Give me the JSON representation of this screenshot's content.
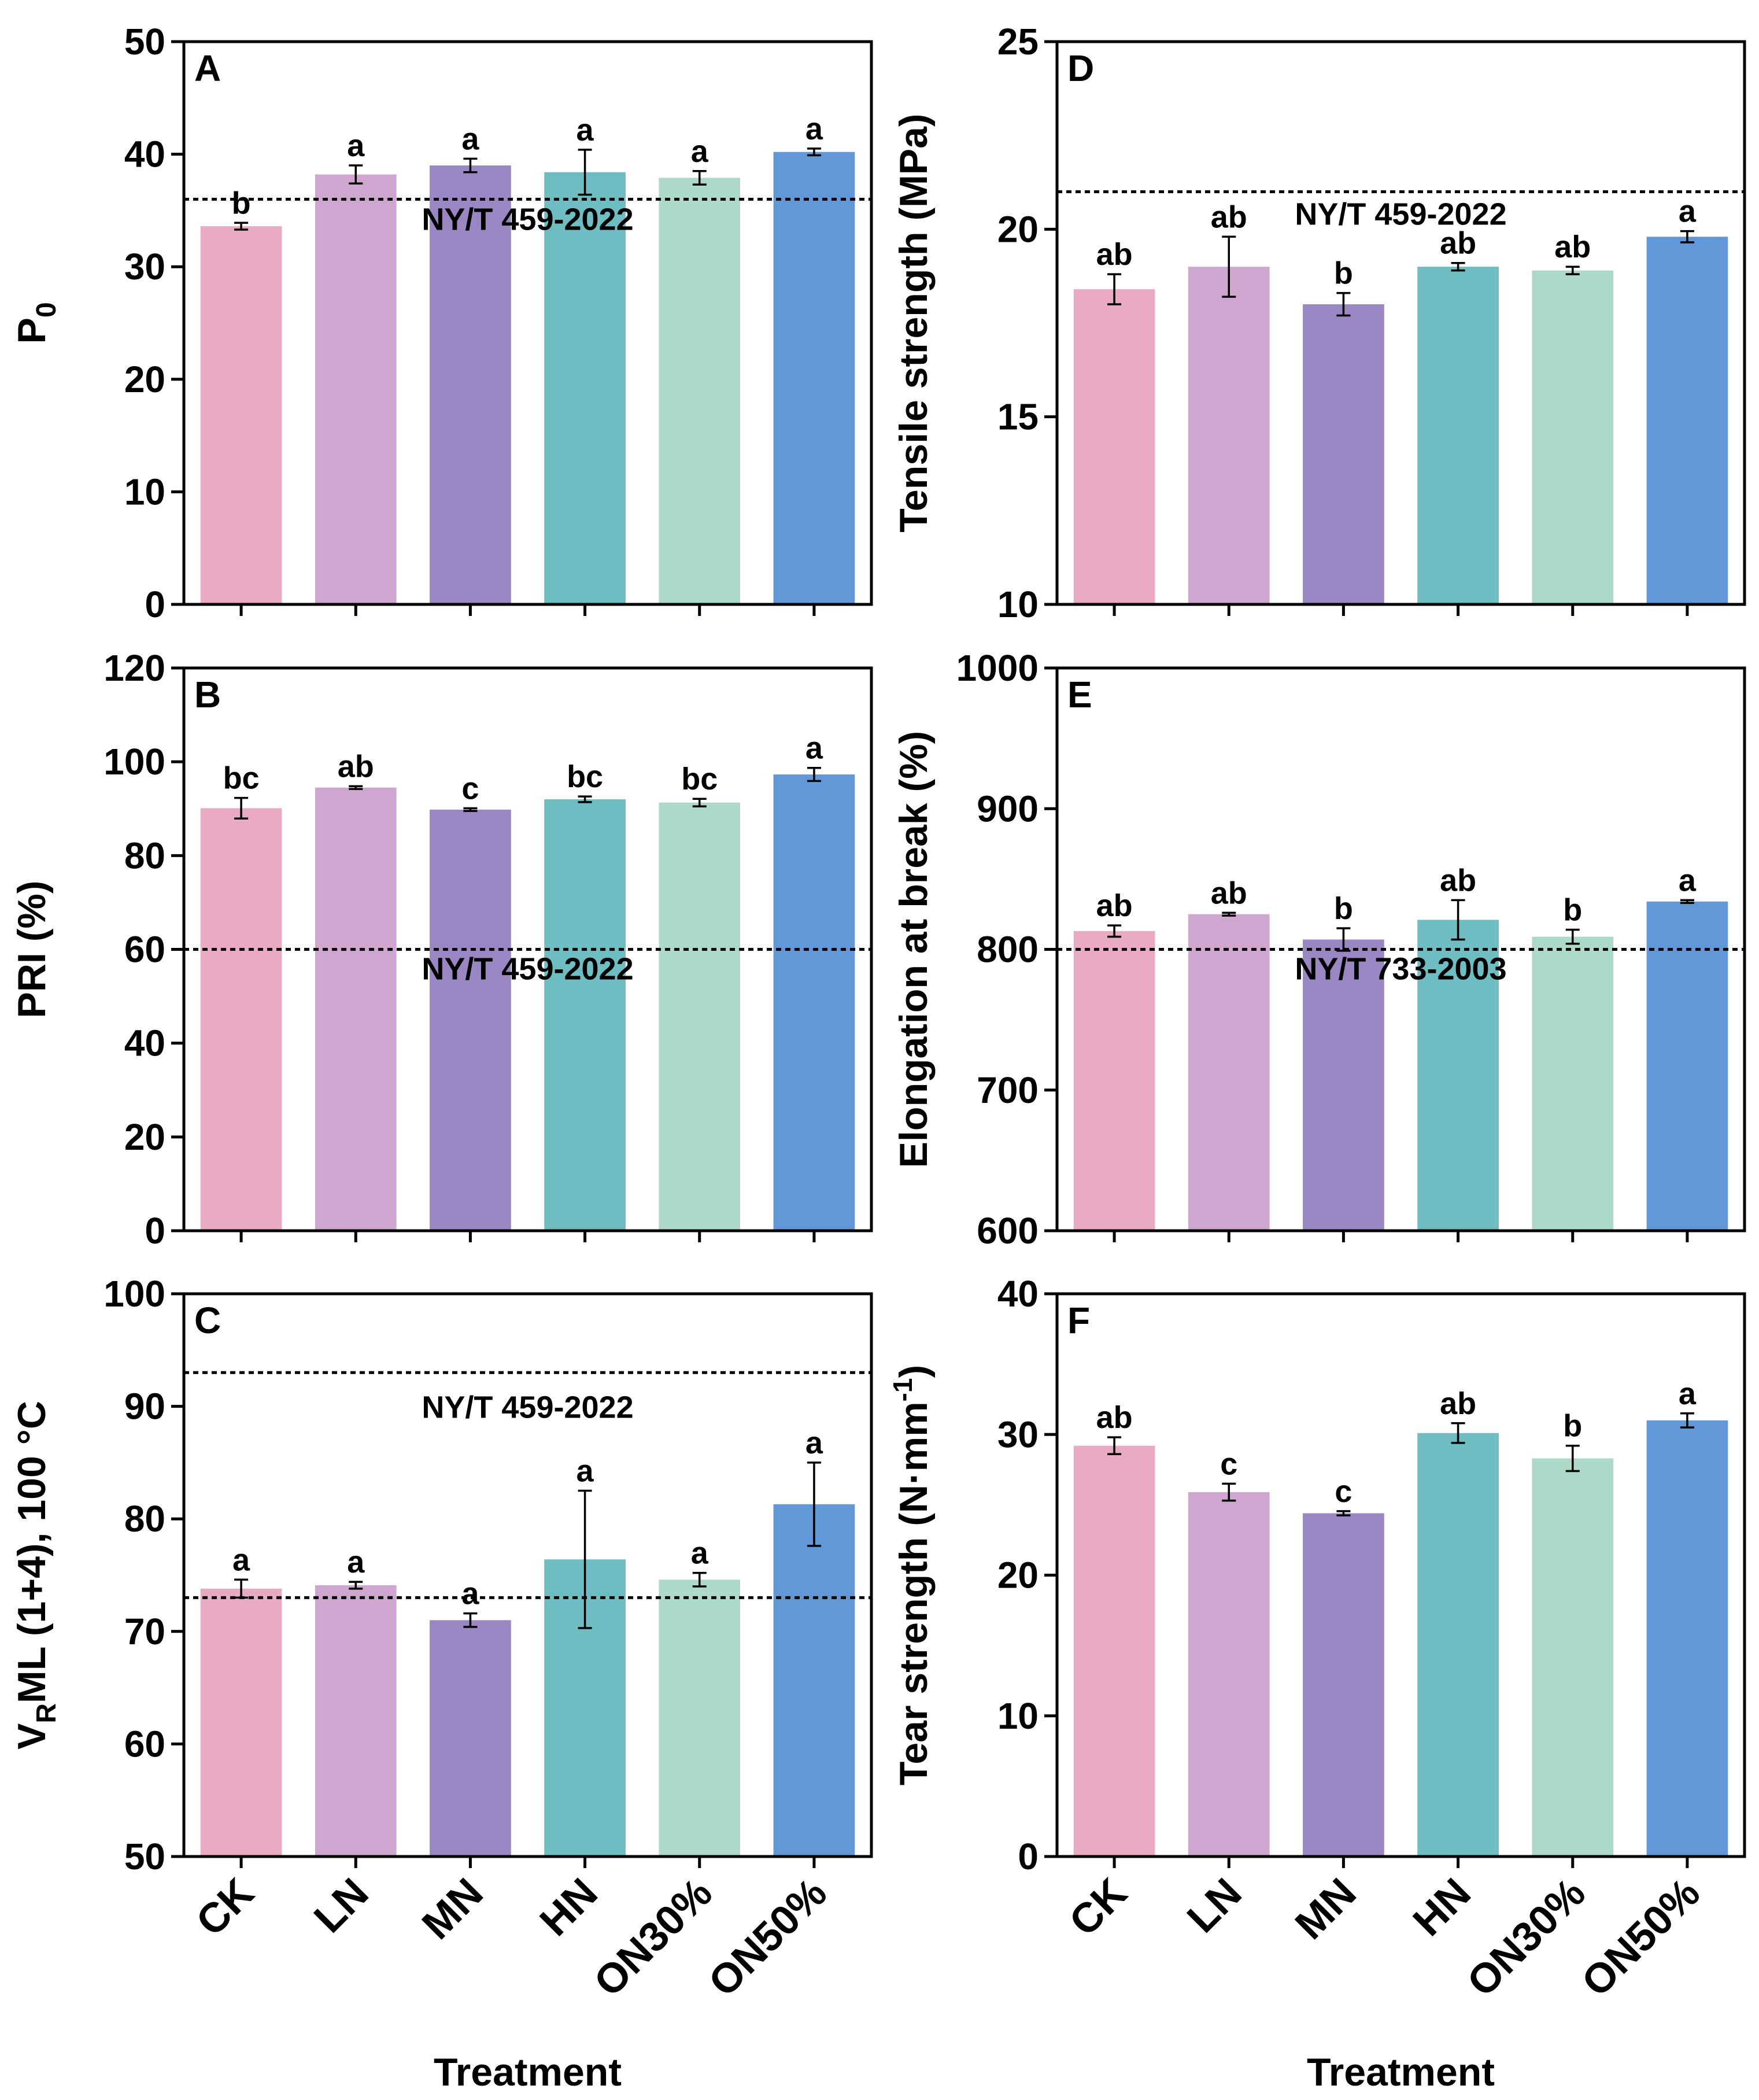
{
  "chart_data": [
    {
      "id": "A",
      "type": "bar",
      "panel_label": "A",
      "categories": [
        "CK",
        "LN",
        "MN",
        "HN",
        "ON30%",
        "ON50%"
      ],
      "values": [
        33.6,
        38.2,
        39.0,
        38.4,
        37.9,
        40.2
      ],
      "errors": [
        0.3,
        0.8,
        0.6,
        2.0,
        0.6,
        0.3
      ],
      "significance": [
        "b",
        "a",
        "a",
        "a",
        "a",
        "a"
      ],
      "ylabel": "P",
      "ylabel_sub": "0",
      "ylabel_suffix": "",
      "ylim": [
        0,
        50
      ],
      "yticks": [
        0,
        10,
        20,
        30,
        40,
        50
      ],
      "reference": {
        "value": 36,
        "label": "NY/T 459-2022",
        "label_value": 34.2
      },
      "show_xlabels": false
    },
    {
      "id": "B",
      "type": "bar",
      "panel_label": "B",
      "categories": [
        "CK",
        "LN",
        "MN",
        "HN",
        "ON30%",
        "ON50%"
      ],
      "values": [
        90.1,
        94.5,
        89.8,
        92.0,
        91.3,
        97.3
      ],
      "errors": [
        2.2,
        0.3,
        0.3,
        0.6,
        0.8,
        1.4
      ],
      "significance": [
        "bc",
        "ab",
        "c",
        "bc",
        "bc",
        "a"
      ],
      "ylabel": "PRI (%)",
      "ylabel_sub": "",
      "ylabel_suffix": "",
      "ylim": [
        0,
        120
      ],
      "yticks": [
        0,
        20,
        40,
        60,
        80,
        100,
        120
      ],
      "reference": {
        "value": 60,
        "label": "NY/T 459-2022",
        "label_value": 55.8
      },
      "show_xlabels": false
    },
    {
      "id": "C",
      "type": "bar",
      "panel_label": "C",
      "categories": [
        "CK",
        "LN",
        "MN",
        "HN",
        "ON30%",
        "ON50%"
      ],
      "values": [
        73.8,
        74.1,
        71.0,
        76.4,
        74.6,
        81.3
      ],
      "errors": [
        0.8,
        0.3,
        0.6,
        6.1,
        0.6,
        3.7
      ],
      "significance": [
        "a",
        "a",
        "a",
        "a",
        "a",
        "a"
      ],
      "ylabel": "V",
      "ylabel_sub": "R",
      "ylabel_suffix": "ML (1+4), 100 °C",
      "ylim": [
        50,
        100
      ],
      "yticks": [
        50,
        60,
        70,
        80,
        90,
        100
      ],
      "reference": {
        "value": 93,
        "label": "NY/T 459-2022",
        "label_value": 89.9
      },
      "reference2": {
        "value": 73
      },
      "show_xlabels": true,
      "xlabel": "Treatment"
    },
    {
      "id": "D",
      "type": "bar",
      "panel_label": "D",
      "categories": [
        "CK",
        "LN",
        "MN",
        "HN",
        "ON30%",
        "ON50%"
      ],
      "values": [
        18.4,
        19.0,
        18.0,
        19.0,
        18.9,
        19.8
      ],
      "errors": [
        0.4,
        0.8,
        0.3,
        0.1,
        0.1,
        0.15
      ],
      "significance": [
        "ab",
        "ab",
        "b",
        "ab",
        "ab",
        "a"
      ],
      "ylabel": "Tensile strength (MPa)",
      "ylabel_sub": "",
      "ylabel_suffix": "",
      "ylim": [
        10,
        25
      ],
      "yticks": [
        10,
        15,
        20,
        25
      ],
      "reference": {
        "value": 21,
        "label": "NY/T 459-2022",
        "label_value": 20.4
      },
      "show_xlabels": false
    },
    {
      "id": "E",
      "type": "bar",
      "panel_label": "E",
      "categories": [
        "CK",
        "LN",
        "MN",
        "HN",
        "ON30%",
        "ON50%"
      ],
      "values": [
        813,
        825,
        807,
        821,
        809,
        834
      ],
      "errors": [
        4,
        1,
        8,
        14,
        5,
        1
      ],
      "significance": [
        "ab",
        "ab",
        "b",
        "ab",
        "b",
        "a"
      ],
      "ylabel": "Elongation at break (%)",
      "ylabel_sub": "",
      "ylabel_suffix": "",
      "ylim": [
        600,
        1000
      ],
      "yticks": [
        600,
        700,
        800,
        900,
        1000
      ],
      "reference": {
        "value": 800,
        "label": "NY/T 733-2003",
        "label_value": 786
      },
      "show_xlabels": false
    },
    {
      "id": "F",
      "type": "bar",
      "panel_label": "F",
      "categories": [
        "CK",
        "LN",
        "MN",
        "HN",
        "ON30%",
        "ON50%"
      ],
      "values": [
        29.2,
        25.9,
        24.4,
        30.1,
        28.3,
        31.0
      ],
      "errors": [
        0.6,
        0.6,
        0.15,
        0.7,
        0.9,
        0.5
      ],
      "significance": [
        "ab",
        "c",
        "c",
        "ab",
        "b",
        "a"
      ],
      "ylabel": "Tear strength (N·mm",
      "ylabel_sub": "",
      "ylabel_sup": "-1",
      "ylabel_suffix": ")",
      "ylim": [
        0,
        40
      ],
      "yticks": [
        0,
        10,
        20,
        30,
        40
      ],
      "reference": null,
      "show_xlabels": true,
      "xlabel": "Treatment"
    }
  ],
  "colors": {
    "bars": [
      "#eaaac4",
      "#cfa6d0",
      "#9a86c2",
      "#6dbdc2",
      "#acd9c8",
      "#6398d8"
    ],
    "axis": "#000000",
    "reference_line": "#000000"
  }
}
